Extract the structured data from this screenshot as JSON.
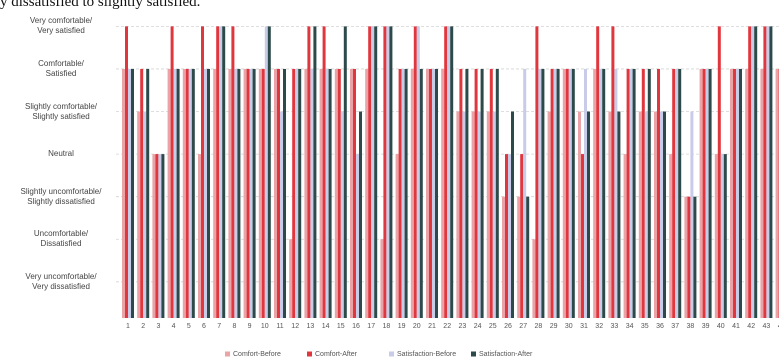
{
  "chart_data": {
    "type": "bar",
    "caption": "y dissatisfied to slightly satisfied.",
    "categories": [
      "1",
      "2",
      "3",
      "4",
      "5",
      "6",
      "7",
      "8",
      "9",
      "10",
      "11",
      "12",
      "13",
      "14",
      "15",
      "16",
      "17",
      "18",
      "19",
      "20",
      "21",
      "22",
      "23",
      "24",
      "25",
      "26",
      "27",
      "28",
      "29",
      "30",
      "31",
      "32",
      "33",
      "34",
      "35",
      "36",
      "37",
      "38",
      "39",
      "40",
      "41",
      "42",
      "43",
      "44"
    ],
    "ylim": [
      0.15,
      7.15
    ],
    "yticks": [
      {
        "value": 1,
        "label": "Very uncomfortable/\nVery dissatisfied"
      },
      {
        "value": 2,
        "label": "Uncomfortable/\nDissatisfied"
      },
      {
        "value": 3,
        "label": "Slightly uncomfortable/\nSlightly dissatisfied"
      },
      {
        "value": 4,
        "label": "Neutral"
      },
      {
        "value": 5,
        "label": "Slightly comfortable/\nSlightly satisfied"
      },
      {
        "value": 6,
        "label": "Comfortable/\nSatisfied"
      },
      {
        "value": 7,
        "label": "Very comfortable/\nVery satisfied"
      }
    ],
    "grid": true,
    "legend": "bottom",
    "series": [
      {
        "name": "Comfort-Before",
        "color": "#eaa3a6",
        "values": [
          6,
          5,
          4,
          6,
          6,
          4,
          6,
          6,
          6,
          6,
          6,
          2,
          6,
          6,
          6,
          6,
          6,
          2,
          4,
          6,
          6,
          6,
          5,
          5,
          5,
          3,
          3,
          2,
          5,
          6,
          5,
          6,
          5,
          4,
          5,
          5,
          4,
          3,
          6,
          4,
          6,
          6,
          6,
          6
        ]
      },
      {
        "name": "Comfort-After",
        "color": "#e0373e",
        "values": [
          7,
          6,
          4,
          7,
          6,
          7,
          7,
          7,
          6,
          6,
          6,
          6,
          7,
          7,
          6,
          6,
          7,
          7,
          6,
          7,
          6,
          7,
          6,
          6,
          6,
          4,
          4,
          7,
          6,
          6,
          4,
          7,
          7,
          6,
          6,
          6,
          6,
          3,
          6,
          7,
          6,
          7,
          7,
          6
        ]
      },
      {
        "name": "Satisfaction-Before",
        "color": "#c9cce8",
        "values": [
          6,
          5,
          4,
          6,
          6,
          6,
          7,
          6,
          6,
          7,
          5,
          6,
          6,
          6,
          5,
          4,
          7,
          7,
          6,
          7,
          6,
          7,
          5,
          5,
          5,
          4,
          6,
          6,
          6,
          6,
          6,
          6,
          6,
          6,
          5,
          5,
          6,
          5,
          6,
          4,
          6,
          7,
          7,
          6
        ]
      },
      {
        "name": "Satisfaction-After",
        "color": "#2d4a4a",
        "values": [
          6,
          6,
          4,
          6,
          6,
          6,
          7,
          6,
          6,
          7,
          6,
          6,
          7,
          6,
          7,
          5,
          7,
          7,
          6,
          6,
          6,
          7,
          6,
          6,
          6,
          5,
          3,
          6,
          6,
          6,
          5,
          6,
          5,
          6,
          6,
          5,
          6,
          3,
          6,
          4,
          6,
          7,
          7,
          6
        ]
      }
    ]
  }
}
